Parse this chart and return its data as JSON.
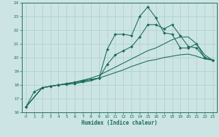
{
  "xlabel": "Humidex (Indice chaleur)",
  "bg_color": "#cce4e4",
  "line_color": "#1a6b5a",
  "grid_color": "#aacccc",
  "xlim": [
    -0.5,
    23.5
  ],
  "ylim": [
    16,
    24
  ],
  "yticks": [
    16,
    17,
    18,
    19,
    20,
    21,
    22,
    23,
    24
  ],
  "xticks": [
    0,
    1,
    2,
    3,
    4,
    5,
    6,
    7,
    8,
    9,
    10,
    11,
    12,
    13,
    14,
    15,
    16,
    17,
    18,
    19,
    20,
    21,
    22,
    23
  ],
  "series1_x": [
    0,
    1,
    2,
    3,
    4,
    5,
    6,
    7,
    8,
    9,
    10,
    11,
    12,
    13,
    14,
    15,
    16,
    17,
    18,
    19,
    20,
    21,
    22,
    23
  ],
  "series1_y": [
    16.4,
    17.5,
    17.8,
    17.9,
    18.0,
    18.1,
    18.2,
    18.3,
    18.4,
    18.5,
    20.6,
    21.7,
    21.7,
    21.6,
    23.0,
    23.7,
    22.9,
    21.8,
    21.7,
    20.7,
    20.7,
    21.0,
    20.0,
    19.8
  ],
  "series2_x": [
    0,
    2,
    3,
    4,
    5,
    6,
    7,
    8,
    9,
    10,
    11,
    12,
    13,
    14,
    15,
    16,
    17,
    18,
    19,
    20,
    21,
    22,
    23
  ],
  "series2_y": [
    16.4,
    17.8,
    17.9,
    18.0,
    18.05,
    18.1,
    18.25,
    18.4,
    18.5,
    19.5,
    20.2,
    20.5,
    20.8,
    21.5,
    22.4,
    22.4,
    22.1,
    22.4,
    21.6,
    20.8,
    20.7,
    20.0,
    19.8
  ],
  "series3_x": [
    0,
    2,
    3,
    4,
    5,
    6,
    7,
    8,
    9,
    10,
    11,
    12,
    13,
    14,
    15,
    16,
    17,
    18,
    19,
    20,
    21,
    22,
    23
  ],
  "series3_y": [
    16.4,
    17.8,
    17.9,
    18.0,
    18.1,
    18.2,
    18.35,
    18.5,
    18.7,
    19.0,
    19.3,
    19.6,
    19.9,
    20.2,
    20.5,
    20.7,
    21.0,
    21.3,
    21.5,
    21.5,
    21.0,
    20.2,
    19.8
  ],
  "series4_x": [
    0,
    2,
    3,
    4,
    5,
    6,
    7,
    8,
    9,
    10,
    11,
    12,
    13,
    14,
    15,
    16,
    17,
    18,
    19,
    20,
    21,
    22,
    23
  ],
  "series4_y": [
    16.4,
    17.8,
    17.9,
    18.0,
    18.05,
    18.1,
    18.2,
    18.3,
    18.5,
    18.7,
    18.9,
    19.1,
    19.35,
    19.55,
    19.75,
    19.85,
    20.0,
    20.1,
    20.2,
    20.25,
    20.1,
    19.9,
    19.8
  ]
}
